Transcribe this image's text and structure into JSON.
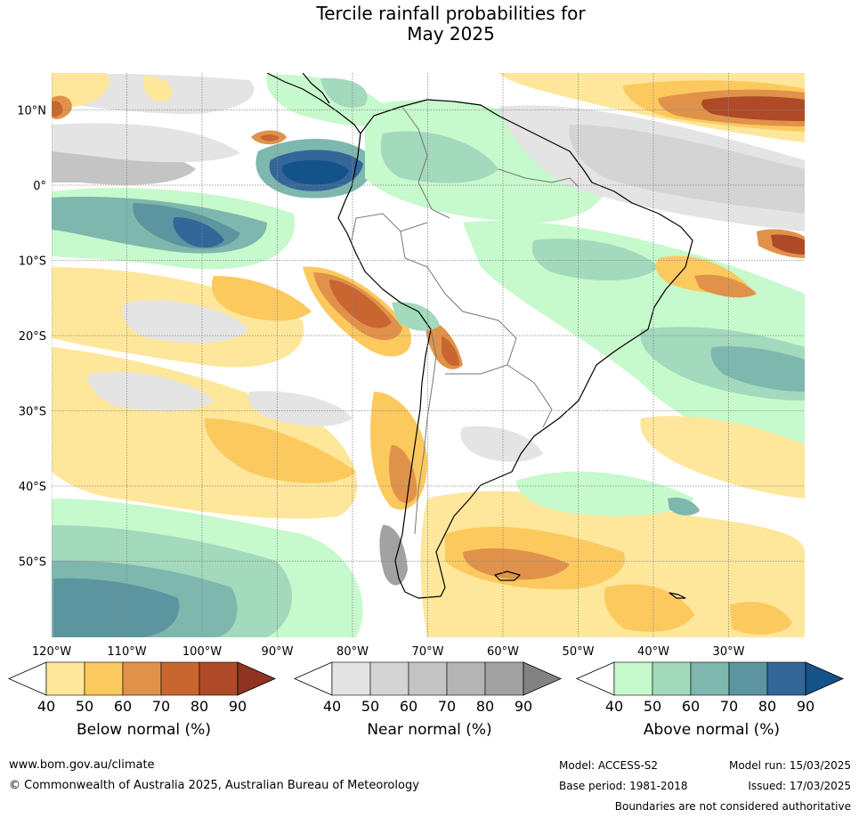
{
  "title": {
    "line1": "Tercile rainfall probabilities for",
    "line2": "May 2025"
  },
  "map": {
    "lat_labels": [
      {
        "label": "10°N",
        "lat": 10
      },
      {
        "label": "0°",
        "lat": 0
      },
      {
        "label": "10°S",
        "lat": -10
      },
      {
        "label": "20°S",
        "lat": -20
      },
      {
        "label": "30°S",
        "lat": -30
      },
      {
        "label": "40°S",
        "lat": -40
      },
      {
        "label": "50°S",
        "lat": -50
      }
    ],
    "lon_labels": [
      {
        "label": "120°W",
        "lon": -120
      },
      {
        "label": "110°W",
        "lon": -110
      },
      {
        "label": "100°W",
        "lon": -100
      },
      {
        "label": "90°W",
        "lon": -90
      },
      {
        "label": "80°W",
        "lon": -80
      },
      {
        "label": "70°W",
        "lon": -70
      },
      {
        "label": "60°W",
        "lon": -60
      },
      {
        "label": "50°W",
        "lon": -50
      },
      {
        "label": "40°W",
        "lon": -40
      },
      {
        "label": "30°W",
        "lon": -30
      }
    ],
    "gridline_color": "#888888"
  },
  "legends": [
    {
      "name": "below-normal",
      "label": "Below normal (%)",
      "ticks": [
        "40",
        "50",
        "60",
        "70",
        "80",
        "90"
      ],
      "colors": [
        "#ffffff",
        "#fee79a",
        "#fcc95e",
        "#e1924a",
        "#c9662f",
        "#ae4a27",
        "#8e3420"
      ]
    },
    {
      "name": "near-normal",
      "label": "Near normal (%)",
      "ticks": [
        "40",
        "50",
        "60",
        "70",
        "80",
        "90"
      ],
      "colors": [
        "#ffffff",
        "#e4e4e4",
        "#d4d4d4",
        "#c4c4c4",
        "#b4b4b4",
        "#a2a2a2",
        "#828282"
      ]
    },
    {
      "name": "above-normal",
      "label": "Above normal (%)",
      "ticks": [
        "40",
        "50",
        "60",
        "70",
        "80",
        "90"
      ],
      "colors": [
        "#ffffff",
        "#c6f9cc",
        "#a3d9bc",
        "#7eb7ad",
        "#5c94a0",
        "#336699",
        "#14528a"
      ]
    }
  ],
  "footer": {
    "website": "www.bom.gov.au/climate",
    "copyright": "© Commonwealth of Australia 2025, Australian Bureau of Meteorology",
    "model": "Model: ACCESS-S2",
    "base_period": "Base period: 1981-2018",
    "model_run": "Model run: 15/03/2025",
    "issued": "Issued: 17/03/2025",
    "disclaimer": "Boundaries are not considered authoritative"
  }
}
